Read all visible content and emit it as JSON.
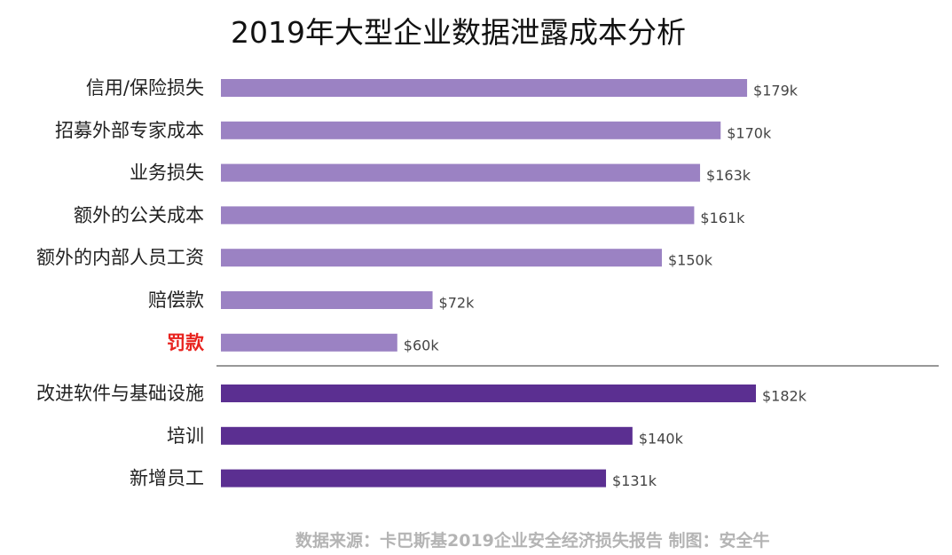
{
  "chart_data": {
    "type": "bar",
    "orientation": "horizontal",
    "title": "2019年大型企业数据泄露成本分析",
    "xlabel": "",
    "ylabel": "",
    "xlim": [
      0,
      182
    ],
    "grid": false,
    "legend": "none",
    "unit": "k USD",
    "groups": [
      {
        "color": "#9b82c3",
        "items": [
          {
            "category": "信用/保险损失",
            "value": 179,
            "label": "$179k"
          },
          {
            "category": "招募外部专家成本",
            "value": 170,
            "label": "$170k"
          },
          {
            "category": "业务损失",
            "value": 163,
            "label": "$163k"
          },
          {
            "category": "额外的公关成本",
            "value": 161,
            "label": "$161k"
          },
          {
            "category": "额外的内部人员工资",
            "value": 150,
            "label": "$150k"
          },
          {
            "category": "赔偿款",
            "value": 72,
            "label": "$72k"
          },
          {
            "category": "罚款",
            "value": 60,
            "label": "$60k",
            "highlight": true
          }
        ]
      },
      {
        "color": "#5b2f91",
        "items": [
          {
            "category": "改进软件与基础设施",
            "value": 182,
            "label": "$182k"
          },
          {
            "category": "培训",
            "value": 140,
            "label": "$140k"
          },
          {
            "category": "新增员工",
            "value": 131,
            "label": "$131k"
          }
        ]
      }
    ]
  },
  "colors": {
    "bar_light": "#9b82c3",
    "bar_dark": "#5b2f91",
    "highlight_label": "#e8231f",
    "label_text": "#222222",
    "value_text": "#444444",
    "divider": "#777777"
  },
  "source_note": "数据来源：卡巴斯基2019企业安全经济损失报告 制图：安全牛"
}
